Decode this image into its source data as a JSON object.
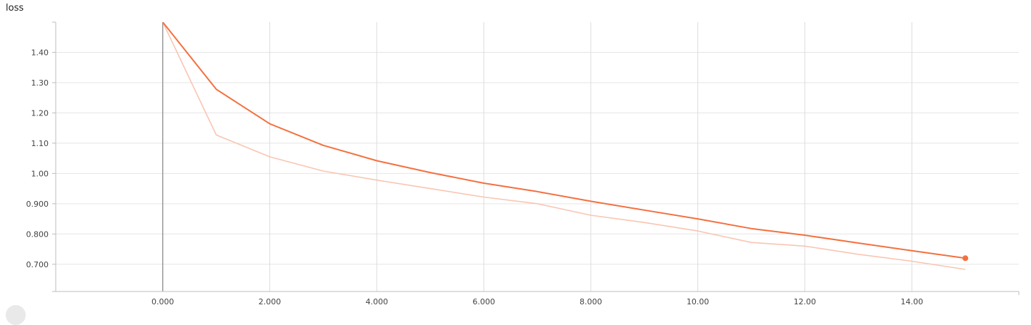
{
  "title": "loss",
  "chart_data": {
    "type": "line",
    "title": "loss",
    "xlabel": "",
    "ylabel": "",
    "xlim": [
      -2.0,
      16.0
    ],
    "ylim": [
      0.61,
      1.5
    ],
    "x_ticks": [
      0,
      2,
      4,
      6,
      8,
      10,
      12,
      14
    ],
    "x_tick_labels": [
      "0.000",
      "2.000",
      "4.000",
      "6.000",
      "8.000",
      "10.00",
      "12.00",
      "14.00"
    ],
    "y_ticks": [
      0.7,
      0.8,
      0.9,
      1.0,
      1.1,
      1.2,
      1.3,
      1.4
    ],
    "y_tick_labels": [
      "0.700",
      "0.800",
      "0.900",
      "1.00",
      "1.10",
      "1.20",
      "1.30",
      "1.40"
    ],
    "grid": true,
    "series": [
      {
        "role": "raw",
        "color": "#f9c5b2",
        "x": [
          0,
          1,
          2,
          3,
          4,
          5,
          6,
          7,
          8,
          9,
          10,
          11,
          12,
          13,
          14,
          15
        ],
        "values": [
          1.5,
          1.127,
          1.055,
          1.008,
          0.978,
          0.95,
          0.922,
          0.9,
          0.862,
          0.838,
          0.81,
          0.772,
          0.76,
          0.733,
          0.71,
          0.683
        ]
      },
      {
        "role": "smoothed",
        "color": "#f4703f",
        "x": [
          0,
          1,
          2,
          3,
          4,
          5,
          6,
          7,
          8,
          9,
          10,
          11,
          12,
          13,
          14,
          15
        ],
        "values": [
          1.5,
          1.278,
          1.164,
          1.093,
          1.042,
          1.003,
          0.968,
          0.94,
          0.908,
          0.879,
          0.85,
          0.818,
          0.796,
          0.77,
          0.745,
          0.72
        ]
      }
    ]
  }
}
